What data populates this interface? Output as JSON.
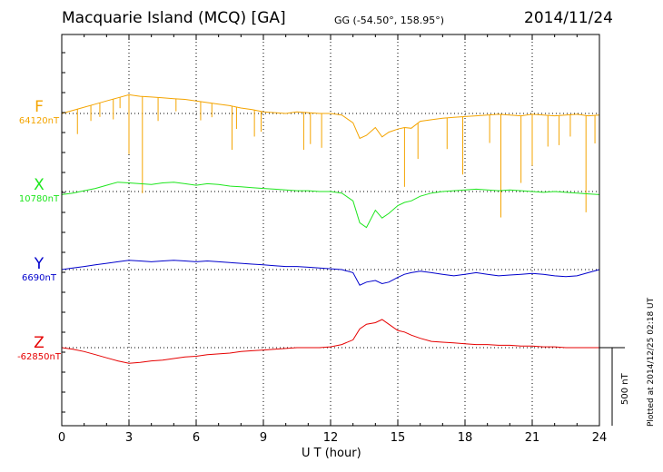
{
  "header": {
    "title": "Macquarie Island (MCQ)  [GA]",
    "coords": "GG (-54.50°, 158.95°)",
    "date": "2014/11/24"
  },
  "plotted_note": "Plotted at 2014/12/25 02:18 UT",
  "scale_label": "500 nT",
  "chart_data": {
    "type": "line",
    "title": "Macquarie Island (MCQ)  [GA]",
    "xlabel": "U T (hour)",
    "x_ticks": [
      "0",
      "3",
      "6",
      "9",
      "12",
      "15",
      "18",
      "21",
      "24"
    ],
    "xlim": [
      0,
      24
    ],
    "y_unit": "nT",
    "scale_bar_nT": 500,
    "series": [
      {
        "name": "F",
        "baseline": "64120nT",
        "color": "#f4a400",
        "x": [
          0,
          0.5,
          1,
          1.5,
          2,
          2.5,
          3,
          3.5,
          4,
          4.5,
          5,
          5.5,
          6,
          6.5,
          7,
          7.5,
          8,
          8.5,
          9,
          9.5,
          10,
          10.5,
          11,
          11.5,
          12,
          12.5,
          13,
          13.3,
          13.6,
          14,
          14.3,
          14.6,
          15,
          15.3,
          15.6,
          16,
          16.5,
          17,
          17.5,
          18,
          18.5,
          19,
          19.5,
          20,
          20.5,
          21,
          21.5,
          22,
          22.5,
          23,
          23.5,
          24
        ],
        "values": [
          0,
          20,
          40,
          60,
          80,
          100,
          120,
          110,
          105,
          100,
          95,
          90,
          80,
          70,
          60,
          50,
          35,
          25,
          10,
          5,
          0,
          10,
          5,
          0,
          0,
          -10,
          -60,
          -160,
          -140,
          -90,
          -150,
          -120,
          -100,
          -90,
          -95,
          -50,
          -40,
          -30,
          -25,
          -20,
          -15,
          -10,
          -5,
          -10,
          -15,
          -5,
          -10,
          -15,
          -10,
          -5,
          -15,
          -10
        ],
        "spikes": [
          [
            0.7,
            -160
          ],
          [
            1.3,
            -100
          ],
          [
            1.7,
            -90
          ],
          [
            2.3,
            -130
          ],
          [
            2.6,
            -70
          ],
          [
            3.0,
            -380
          ],
          [
            3.6,
            -620
          ],
          [
            4.3,
            -150
          ],
          [
            5.1,
            -80
          ],
          [
            6.2,
            -120
          ],
          [
            6.7,
            -90
          ],
          [
            7.6,
            -280
          ],
          [
            7.8,
            -140
          ],
          [
            8.6,
            -170
          ],
          [
            8.9,
            -130
          ],
          [
            10.8,
            -240
          ],
          [
            11.1,
            -200
          ],
          [
            11.6,
            -220
          ],
          [
            15.3,
            -380
          ],
          [
            15.9,
            -230
          ],
          [
            17.2,
            -200
          ],
          [
            17.9,
            -370
          ],
          [
            19.1,
            -180
          ],
          [
            19.6,
            -660
          ],
          [
            20.5,
            -430
          ],
          [
            21.0,
            -330
          ],
          [
            21.7,
            -200
          ],
          [
            22.2,
            -190
          ],
          [
            22.7,
            -140
          ],
          [
            23.4,
            -620
          ],
          [
            23.8,
            -180
          ]
        ]
      },
      {
        "name": "X",
        "baseline": "10780nT",
        "color": "#1ee61e",
        "x": [
          0,
          0.5,
          1,
          1.5,
          2,
          2.5,
          3,
          3.5,
          4,
          4.5,
          5,
          5.5,
          6,
          6.5,
          7,
          7.5,
          8,
          8.5,
          9,
          9.5,
          10,
          10.5,
          11,
          11.5,
          12,
          12.5,
          13,
          13.3,
          13.6,
          14,
          14.3,
          14.6,
          15,
          15.3,
          15.6,
          16,
          16.5,
          17,
          17.5,
          18,
          18.5,
          19,
          19.5,
          20,
          20.5,
          21,
          21.5,
          22,
          22.5,
          23,
          23.5,
          24
        ],
        "values": [
          -20,
          -10,
          5,
          20,
          40,
          60,
          55,
          50,
          45,
          55,
          60,
          50,
          40,
          50,
          45,
          35,
          30,
          25,
          20,
          15,
          10,
          5,
          5,
          0,
          0,
          -10,
          -60,
          -200,
          -230,
          -120,
          -170,
          -140,
          -90,
          -70,
          -60,
          -30,
          -10,
          0,
          5,
          10,
          15,
          10,
          5,
          10,
          5,
          0,
          -5,
          0,
          -5,
          -10,
          -15,
          -20
        ]
      },
      {
        "name": "Y",
        "baseline": "6690nT",
        "color": "#0000cc",
        "x": [
          0,
          0.5,
          1,
          1.5,
          2,
          2.5,
          3,
          3.5,
          4,
          4.5,
          5,
          5.5,
          6,
          6.5,
          7,
          7.5,
          8,
          8.5,
          9,
          9.5,
          10,
          10.5,
          11,
          11.5,
          12,
          12.5,
          13,
          13.3,
          13.6,
          14,
          14.3,
          14.6,
          15,
          15.3,
          15.6,
          16,
          16.5,
          17,
          17.5,
          18,
          18.5,
          19,
          19.5,
          20,
          20.5,
          21,
          21.5,
          22,
          22.5,
          23,
          23.5,
          24
        ],
        "values": [
          0,
          10,
          20,
          30,
          40,
          50,
          60,
          55,
          50,
          55,
          60,
          55,
          50,
          55,
          50,
          45,
          40,
          35,
          30,
          25,
          20,
          20,
          15,
          10,
          5,
          0,
          -20,
          -100,
          -80,
          -70,
          -90,
          -80,
          -50,
          -30,
          -20,
          -10,
          -20,
          -30,
          -40,
          -30,
          -20,
          -30,
          -40,
          -35,
          -30,
          -25,
          -30,
          -40,
          -45,
          -40,
          -20,
          0
        ]
      },
      {
        "name": "Z",
        "baseline": "-62850nT",
        "color": "#e60000",
        "x": [
          0,
          0.5,
          1,
          1.5,
          2,
          2.5,
          3,
          3.5,
          4,
          4.5,
          5,
          5.5,
          6,
          6.5,
          7,
          7.5,
          8,
          8.5,
          9,
          9.5,
          10,
          10.5,
          11,
          11.5,
          12,
          12.5,
          13,
          13.3,
          13.6,
          14,
          14.3,
          14.6,
          15,
          15.3,
          15.6,
          16,
          16.5,
          17,
          17.5,
          18,
          18.5,
          19,
          19.5,
          20,
          20.5,
          21,
          21.5,
          22,
          22.5,
          23,
          23.5,
          24
        ],
        "values": [
          0,
          -10,
          -25,
          -45,
          -65,
          -85,
          -100,
          -95,
          -85,
          -80,
          -70,
          -60,
          -55,
          -45,
          -40,
          -35,
          -25,
          -20,
          -15,
          -10,
          -5,
          0,
          0,
          0,
          5,
          20,
          50,
          120,
          150,
          160,
          180,
          150,
          110,
          100,
          80,
          60,
          40,
          35,
          30,
          25,
          20,
          20,
          15,
          15,
          10,
          10,
          5,
          5,
          0,
          0,
          0,
          0
        ]
      }
    ]
  }
}
